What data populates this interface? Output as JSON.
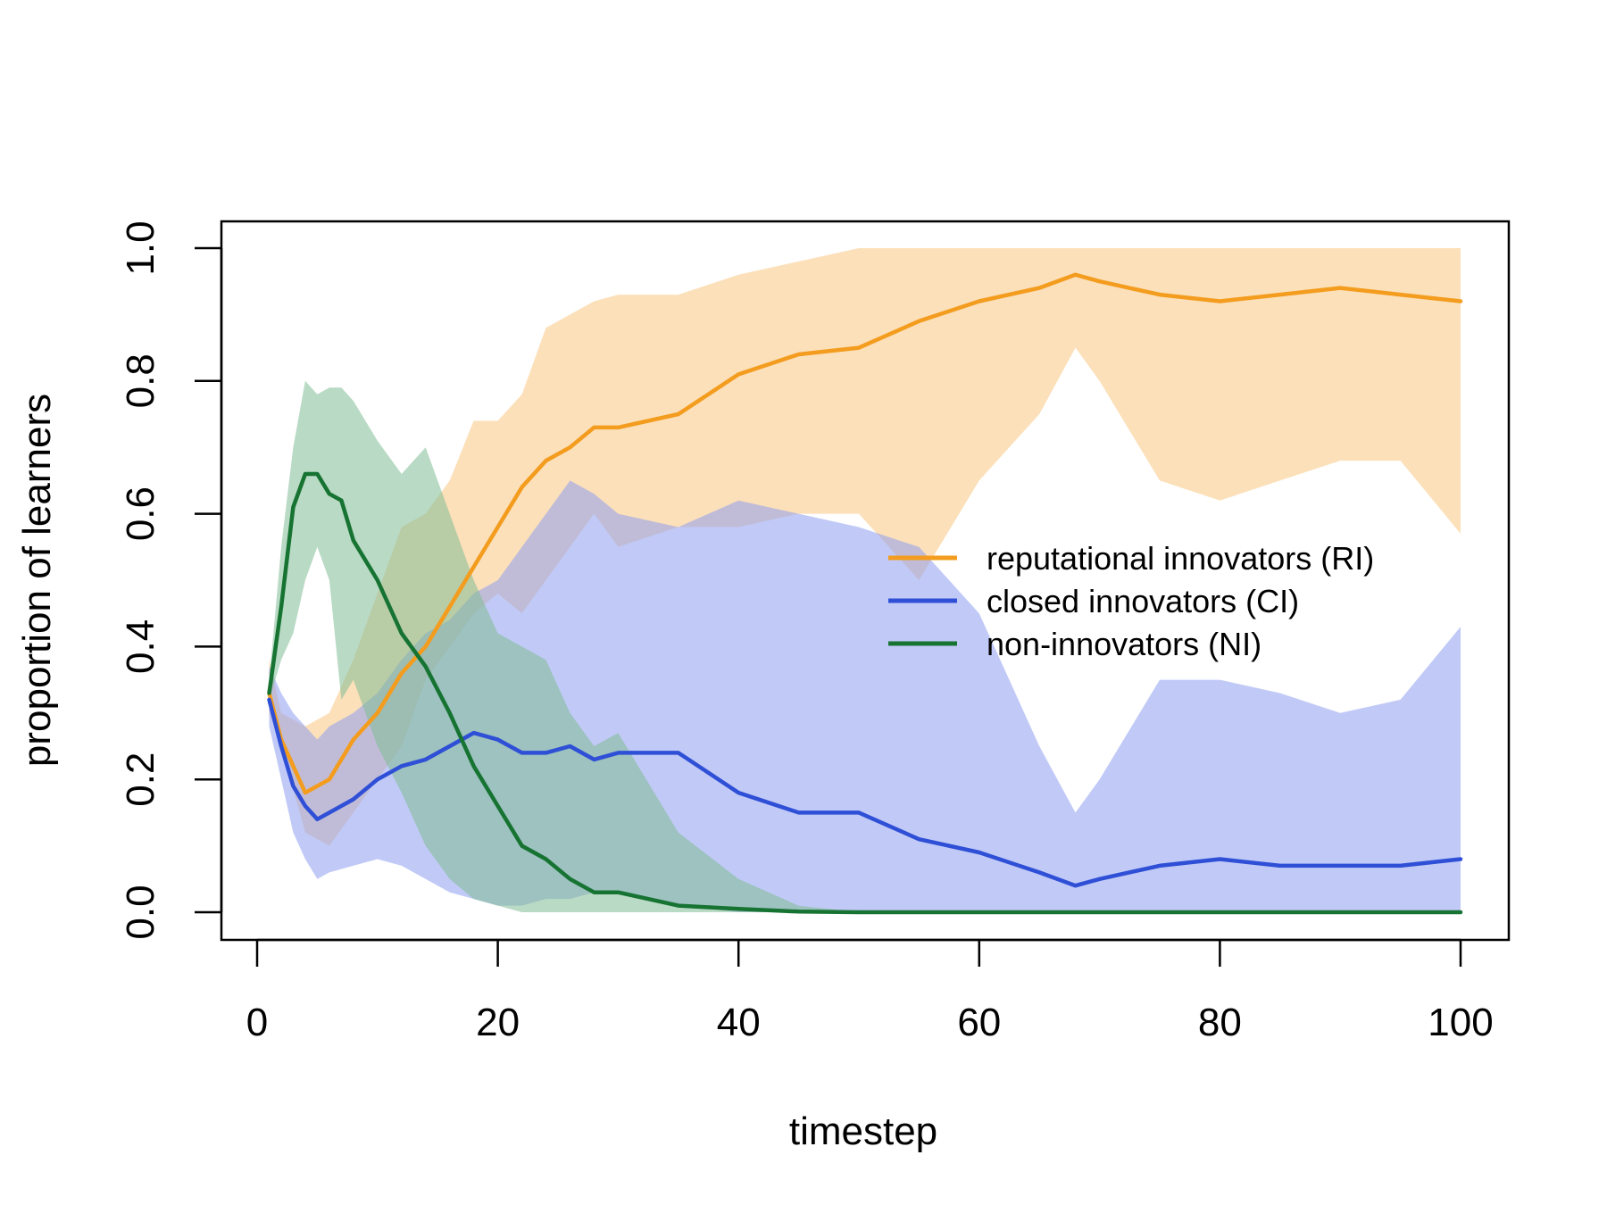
{
  "chart_data": {
    "type": "line",
    "xlabel": "timestep",
    "ylabel": "proportion of learners",
    "xlim": [
      0,
      100
    ],
    "ylim": [
      0,
      1
    ],
    "xticks": [
      0,
      20,
      40,
      60,
      80,
      100
    ],
    "xtick_labels": [
      "0",
      "20",
      "40",
      "60",
      "80",
      "100"
    ],
    "yticks": [
      0,
      0.2,
      0.4,
      0.6,
      0.8,
      1
    ],
    "ytick_labels": [
      "0.0",
      "0.2",
      "0.4",
      "0.6",
      "0.8",
      "1.0"
    ],
    "grid": false,
    "legend_position": "right",
    "series": [
      {
        "name": "reputational innovators (RI)",
        "color": "#f39c1e",
        "band_color": "#f9c782",
        "x": [
          1,
          2,
          4,
          6,
          8,
          10,
          12,
          14,
          16,
          18,
          20,
          22,
          24,
          26,
          28,
          30,
          35,
          40,
          45,
          50,
          55,
          60,
          65,
          68,
          70,
          75,
          80,
          85,
          90,
          95,
          100
        ],
        "values": [
          0.33,
          0.26,
          0.18,
          0.2,
          0.26,
          0.3,
          0.36,
          0.4,
          0.46,
          0.52,
          0.58,
          0.64,
          0.68,
          0.7,
          0.73,
          0.73,
          0.75,
          0.81,
          0.84,
          0.85,
          0.89,
          0.92,
          0.94,
          0.96,
          0.95,
          0.93,
          0.92,
          0.93,
          0.94,
          0.93,
          0.92
        ],
        "lower": [
          0.3,
          0.25,
          0.12,
          0.1,
          0.15,
          0.2,
          0.25,
          0.35,
          0.4,
          0.45,
          0.48,
          0.45,
          0.5,
          0.55,
          0.6,
          0.55,
          0.58,
          0.58,
          0.6,
          0.6,
          0.5,
          0.65,
          0.75,
          0.85,
          0.8,
          0.65,
          0.62,
          0.65,
          0.68,
          0.68,
          0.57
        ],
        "upper": [
          0.38,
          0.3,
          0.28,
          0.3,
          0.38,
          0.48,
          0.58,
          0.6,
          0.65,
          0.74,
          0.74,
          0.78,
          0.88,
          0.9,
          0.92,
          0.93,
          0.93,
          0.96,
          0.98,
          1.0,
          1.0,
          1.0,
          1.0,
          1.0,
          1.0,
          1.0,
          1.0,
          1.0,
          1.0,
          1.0,
          1.0
        ]
      },
      {
        "name": "closed innovators (CI)",
        "color": "#2e4fd6",
        "band_color": "#8e9ef0",
        "x": [
          1,
          2,
          3,
          4,
          5,
          6,
          8,
          10,
          12,
          14,
          16,
          18,
          20,
          22,
          24,
          26,
          28,
          30,
          35,
          40,
          45,
          50,
          55,
          60,
          65,
          68,
          70,
          75,
          80,
          85,
          90,
          95,
          100
        ],
        "values": [
          0.32,
          0.25,
          0.19,
          0.16,
          0.14,
          0.15,
          0.17,
          0.2,
          0.22,
          0.23,
          0.25,
          0.27,
          0.26,
          0.24,
          0.24,
          0.25,
          0.23,
          0.24,
          0.24,
          0.18,
          0.15,
          0.15,
          0.11,
          0.09,
          0.06,
          0.04,
          0.05,
          0.07,
          0.08,
          0.07,
          0.07,
          0.07,
          0.08
        ],
        "lower": [
          0.28,
          0.2,
          0.12,
          0.08,
          0.05,
          0.06,
          0.07,
          0.08,
          0.07,
          0.05,
          0.03,
          0.02,
          0.01,
          0.01,
          0.02,
          0.02,
          0.03,
          0.03,
          0.01,
          0.0,
          0.0,
          0.0,
          0.0,
          0.0,
          0.0,
          0.0,
          0.0,
          0.0,
          0.0,
          0.0,
          0.0,
          0.0,
          0.0
        ],
        "upper": [
          0.37,
          0.33,
          0.3,
          0.28,
          0.26,
          0.28,
          0.3,
          0.33,
          0.38,
          0.42,
          0.44,
          0.48,
          0.5,
          0.55,
          0.6,
          0.65,
          0.63,
          0.6,
          0.58,
          0.62,
          0.6,
          0.58,
          0.55,
          0.45,
          0.25,
          0.15,
          0.2,
          0.35,
          0.35,
          0.33,
          0.3,
          0.32,
          0.43
        ]
      },
      {
        "name": "non-innovators (NI)",
        "color": "#167332",
        "band_color": "#7fbc93",
        "x": [
          1,
          2,
          3,
          4,
          5,
          6,
          7,
          8,
          10,
          12,
          14,
          16,
          18,
          20,
          22,
          24,
          26,
          28,
          30,
          35,
          40,
          45,
          50,
          60,
          70,
          80,
          90,
          100
        ],
        "values": [
          0.33,
          0.46,
          0.61,
          0.66,
          0.66,
          0.63,
          0.62,
          0.56,
          0.5,
          0.42,
          0.37,
          0.3,
          0.22,
          0.16,
          0.1,
          0.08,
          0.05,
          0.03,
          0.03,
          0.01,
          0.005,
          0.001,
          0.0,
          0.0,
          0.0,
          0.0,
          0.0,
          0.0
        ],
        "lower": [
          0.32,
          0.38,
          0.42,
          0.5,
          0.55,
          0.5,
          0.32,
          0.35,
          0.25,
          0.18,
          0.1,
          0.05,
          0.02,
          0.01,
          0.0,
          0.0,
          0.0,
          0.0,
          0.0,
          0.0,
          0.0,
          0.0,
          0.0,
          0.0,
          0.0,
          0.0,
          0.0,
          0.0
        ],
        "upper": [
          0.35,
          0.55,
          0.7,
          0.8,
          0.78,
          0.79,
          0.79,
          0.77,
          0.71,
          0.66,
          0.7,
          0.6,
          0.5,
          0.42,
          0.4,
          0.38,
          0.3,
          0.25,
          0.27,
          0.12,
          0.05,
          0.01,
          0.0,
          0.0,
          0.0,
          0.0,
          0.0,
          0.0
        ]
      }
    ]
  }
}
